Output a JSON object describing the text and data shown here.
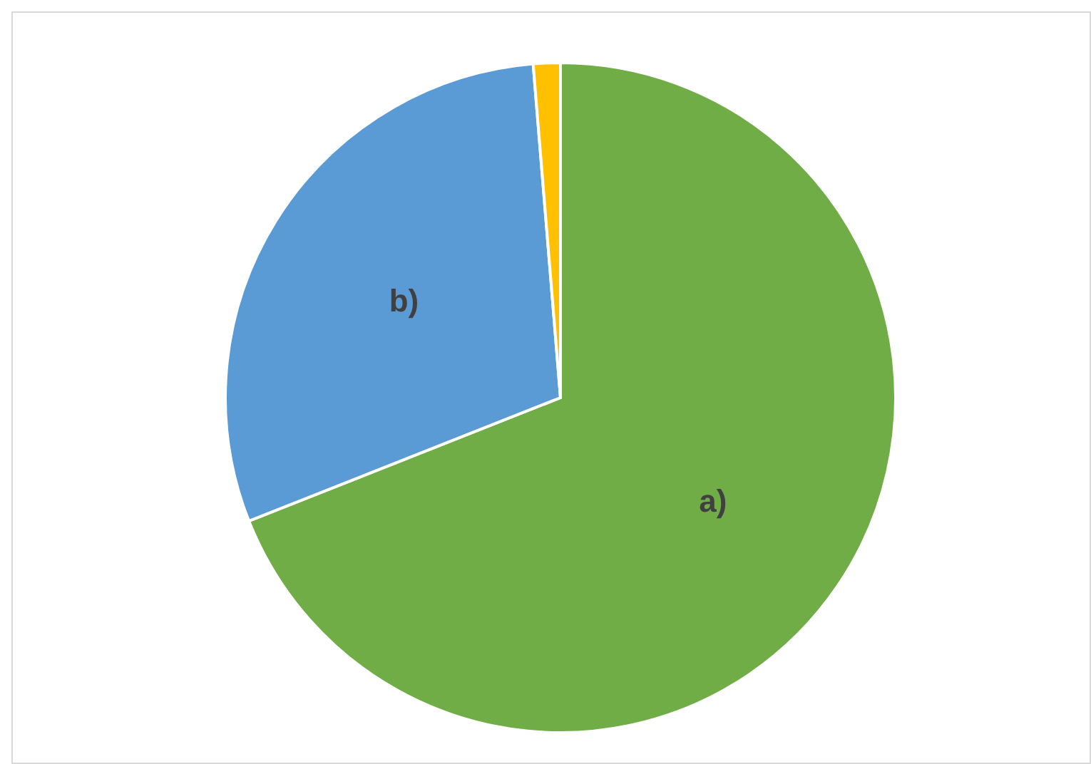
{
  "chart_data": {
    "type": "pie",
    "categories": [
      "a)",
      "b)",
      null
    ],
    "values": [
      69,
      29.7,
      1.3
    ],
    "colors": [
      "#70ad47",
      "#5b9bd5",
      "#ffc000"
    ],
    "legend": false
  }
}
